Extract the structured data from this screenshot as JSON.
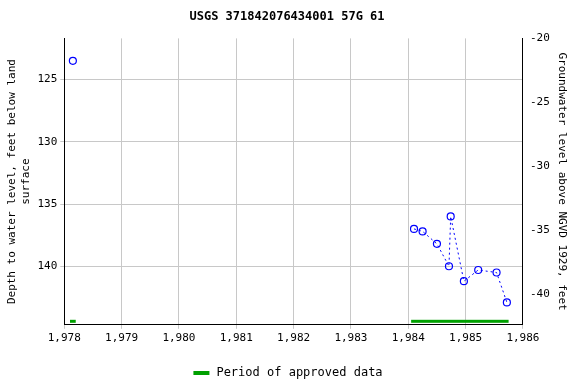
{
  "chart_data": {
    "type": "scatter",
    "title": "USGS 371842076434001 57G 61",
    "ylabel": [
      "Depth to water level, feet below land",
      "surface"
    ],
    "y2label": "Groundwater level above NGVD 1929, feet",
    "x": [
      1978.15,
      1984.1,
      1984.25,
      1984.5,
      1984.71,
      1984.74,
      1984.97,
      1985.22,
      1985.54,
      1985.72
    ],
    "values": [
      123.5,
      137.0,
      137.2,
      138.2,
      140.0,
      136.0,
      141.2,
      140.3,
      140.5,
      142.9
    ],
    "color": "#0000ff",
    "marker": "circle",
    "line_style": "dotted",
    "xlim": [
      1978,
      1986
    ],
    "xticks": [
      1978,
      1979,
      1980,
      1981,
      1982,
      1983,
      1984,
      1985,
      1986
    ],
    "ylim": [
      144.7,
      121.7
    ],
    "yticks": [
      125,
      130,
      135,
      140
    ],
    "y2lim": [
      -42.4,
      -20
    ],
    "y2ticks": [
      -20,
      -25,
      -30,
      -35,
      -40
    ],
    "grid": true,
    "legend": "bottom",
    "approved": {
      "name": "Period of approved data",
      "color": "#00a000",
      "periods": [
        [
          1978.1,
          1978.2
        ],
        [
          1984.05,
          1985.75
        ]
      ]
    }
  }
}
